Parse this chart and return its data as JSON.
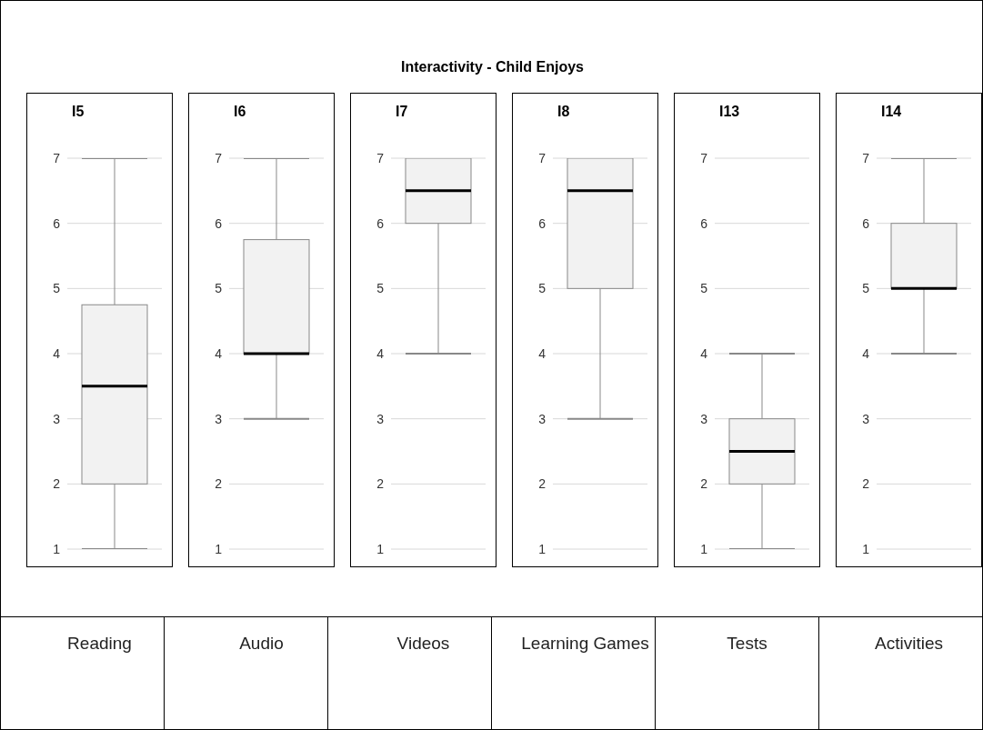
{
  "chart_data": [
    {
      "type": "other",
      "title": "Interactivity - Child Enjoys"
    },
    {
      "type": "box",
      "title": "I5",
      "categories": [
        "Reading"
      ],
      "boxes": [
        {
          "low": 1,
          "q1": 2,
          "median": 3.5,
          "q3": 4.75,
          "high": 7
        }
      ],
      "color": "#f2f2f2",
      "ylim": [
        1,
        7
      ],
      "yticks": [
        1,
        2,
        3,
        4,
        5,
        6,
        7
      ],
      "grid": "y"
    },
    {
      "type": "box",
      "title": "I6",
      "categories": [
        "Audio"
      ],
      "boxes": [
        {
          "low": 3,
          "q1": 4,
          "median": 4,
          "q3": 5.75,
          "high": 7
        }
      ],
      "color": "#f2f2f2",
      "ylim": [
        1,
        7
      ],
      "yticks": [
        1,
        2,
        3,
        4,
        5,
        6,
        7
      ],
      "grid": "y"
    },
    {
      "type": "box",
      "title": "I7",
      "categories": [
        "Videos"
      ],
      "boxes": [
        {
          "low": 4,
          "q1": 6,
          "median": 6.5,
          "q3": 7,
          "high": 7
        }
      ],
      "color": "#f2f2f2",
      "ylim": [
        1,
        7
      ],
      "yticks": [
        1,
        2,
        3,
        4,
        5,
        6,
        7
      ],
      "grid": "y"
    },
    {
      "type": "box",
      "title": "I8",
      "categories": [
        "Learning Games"
      ],
      "boxes": [
        {
          "low": 3,
          "q1": 5,
          "median": 6.5,
          "q3": 7,
          "high": 7
        }
      ],
      "color": "#f2f2f2",
      "ylim": [
        1,
        7
      ],
      "yticks": [
        1,
        2,
        3,
        4,
        5,
        6,
        7
      ],
      "grid": "y"
    },
    {
      "type": "box",
      "title": "I13",
      "categories": [
        "Tests"
      ],
      "boxes": [
        {
          "low": 1,
          "q1": 2,
          "median": 2.5,
          "q3": 3,
          "high": 4
        }
      ],
      "color": "#f2f2f2",
      "ylim": [
        1,
        7
      ],
      "yticks": [
        1,
        2,
        3,
        4,
        5,
        6,
        7
      ],
      "grid": "y"
    },
    {
      "type": "box",
      "title": "I14",
      "categories": [
        "Activities"
      ],
      "boxes": [
        {
          "low": 4,
          "q1": 5,
          "median": 5,
          "q3": 6,
          "high": 7
        }
      ],
      "color": "#f2f2f2",
      "ylim": [
        1,
        7
      ],
      "yticks": [
        1,
        2,
        3,
        4,
        5,
        6,
        7
      ],
      "grid": "y"
    }
  ]
}
